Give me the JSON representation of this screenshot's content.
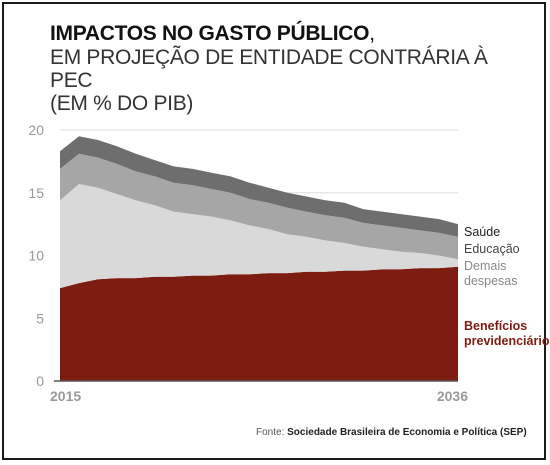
{
  "title": {
    "line1": "IMPACTOS NO GASTO PÚBLICO",
    "line1_tail": ",",
    "line2": "EM PROJEÇÃO DE ENTIDADE CONTRÁRIA À PEC",
    "line3": "(EM % DO PIB)"
  },
  "source": {
    "label": "Fonte:",
    "text": "Sociedade Brasileira de Economia e Política (SEP)"
  },
  "colors": {
    "beneficios": "#7d1c11",
    "demais": "#d9d9d9",
    "educacao": "#a6a6a6",
    "saude": "#6e6e6e",
    "axis_text": "#999999",
    "grid": "#dddddd"
  },
  "chart_data": {
    "type": "area",
    "stacked": true,
    "x": [
      2015,
      2016,
      2017,
      2018,
      2019,
      2020,
      2021,
      2022,
      2023,
      2024,
      2025,
      2026,
      2027,
      2028,
      2029,
      2030,
      2031,
      2032,
      2033,
      2034,
      2035,
      2036
    ],
    "x_tick_labels": [
      "2015",
      "2036"
    ],
    "ylim": [
      0,
      20
    ],
    "y_ticks": [
      0,
      5,
      10,
      15,
      20
    ],
    "grid": true,
    "series": [
      {
        "name": "Benefícios previdenciários",
        "color": "#7d1c11",
        "values": [
          7.4,
          7.8,
          8.1,
          8.2,
          8.2,
          8.3,
          8.3,
          8.4,
          8.4,
          8.5,
          8.5,
          8.6,
          8.6,
          8.7,
          8.7,
          8.8,
          8.8,
          8.9,
          8.9,
          9.0,
          9.0,
          9.1
        ]
      },
      {
        "name": "Demais despesas",
        "color": "#d9d9d9",
        "values": [
          7.0,
          7.9,
          7.3,
          6.7,
          6.2,
          5.7,
          5.2,
          4.9,
          4.7,
          4.3,
          3.9,
          3.5,
          3.1,
          2.8,
          2.5,
          2.2,
          1.9,
          1.6,
          1.4,
          1.2,
          1.0,
          0.6
        ]
      },
      {
        "name": "Educação",
        "color": "#a6a6a6",
        "values": [
          2.5,
          2.4,
          2.4,
          2.4,
          2.3,
          2.3,
          2.3,
          2.3,
          2.2,
          2.2,
          2.1,
          2.1,
          2.1,
          2.0,
          2.0,
          2.0,
          1.9,
          1.9,
          1.9,
          1.8,
          1.8,
          1.8
        ]
      },
      {
        "name": "Saúde",
        "color": "#6e6e6e",
        "values": [
          1.4,
          1.4,
          1.4,
          1.4,
          1.4,
          1.3,
          1.3,
          1.3,
          1.3,
          1.3,
          1.3,
          1.2,
          1.2,
          1.2,
          1.2,
          1.2,
          1.1,
          1.1,
          1.1,
          1.1,
          1.1,
          1.0
        ]
      }
    ],
    "legend": [
      {
        "lines": [
          "Saúde"
        ],
        "color": "#222222",
        "bold": false
      },
      {
        "lines": [
          "Educação"
        ],
        "color": "#444444",
        "bold": false
      },
      {
        "lines": [
          "Demais",
          "despesas"
        ],
        "color": "#888888",
        "bold": false
      },
      {
        "lines": [
          "Benefícios",
          "previdenciários"
        ],
        "color": "#7d1c11",
        "bold": true
      }
    ]
  }
}
